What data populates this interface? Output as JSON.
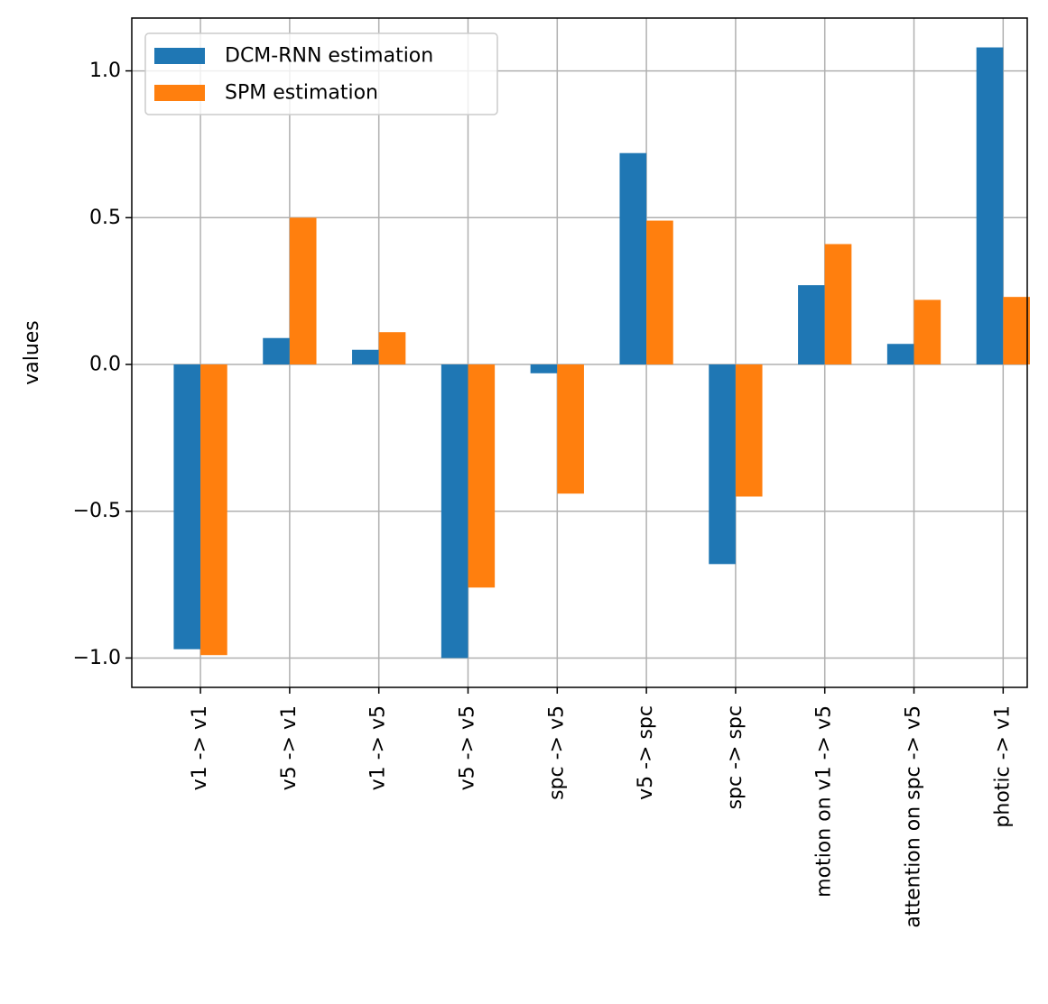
{
  "chart_data": {
    "type": "bar",
    "title": "",
    "xlabel": "",
    "ylabel": "values",
    "ylim": [
      -1.1,
      1.18
    ],
    "yticks": [
      1.0,
      0.5,
      0.0,
      -0.5,
      -1.0
    ],
    "ytick_labels": [
      "1.0",
      "0.5",
      "0.0",
      "−0.5",
      "−1.0"
    ],
    "grid": true,
    "legend_position": "top-left",
    "categories": [
      "v1 -> v1",
      "v5 -> v1",
      "v1 -> v5",
      "v5 -> v5",
      "spc -> v5",
      "v5 -> spc",
      "spc -> spc",
      "motion on v1 -> v5",
      "attention on spc -> v5",
      "photic -> v1"
    ],
    "series": [
      {
        "name": "DCM-RNN estimation",
        "color": "#1f77b4",
        "values": [
          -0.97,
          0.09,
          0.05,
          -1.0,
          -0.03,
          0.72,
          -0.68,
          0.27,
          0.07,
          1.08
        ]
      },
      {
        "name": "SPM estimation",
        "color": "#ff7f0e",
        "values": [
          -0.99,
          0.5,
          0.11,
          -0.76,
          -0.44,
          0.49,
          -0.45,
          0.41,
          0.22,
          0.23
        ]
      }
    ]
  }
}
